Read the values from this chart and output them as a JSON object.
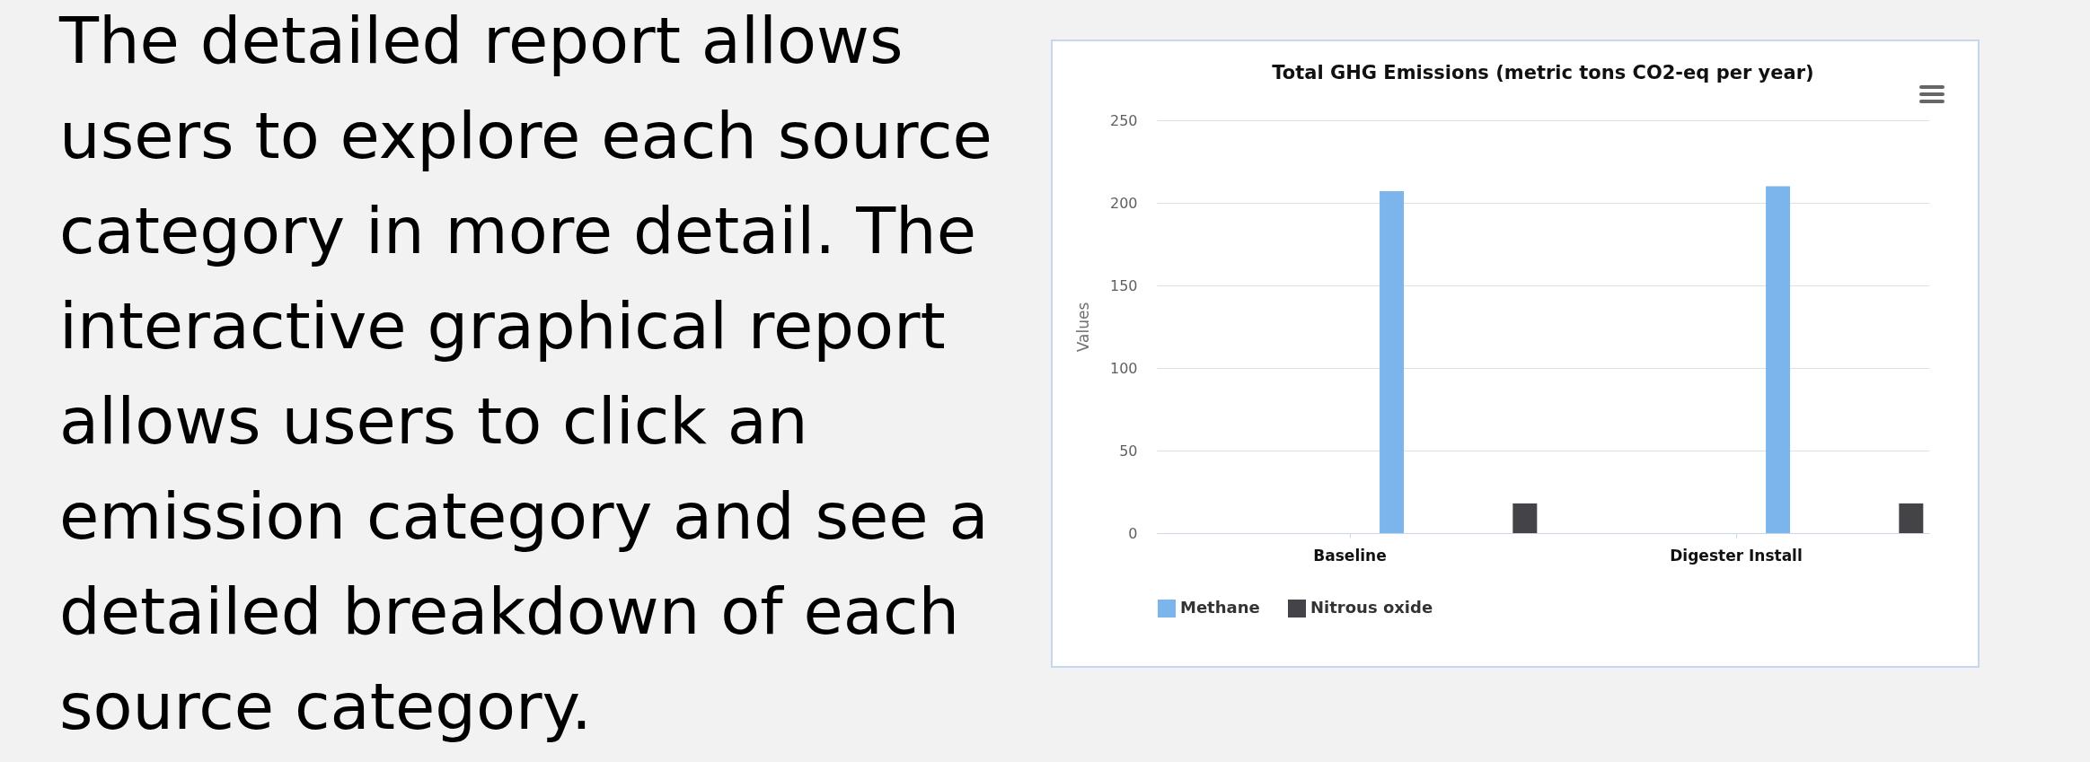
{
  "chart_data": {
    "type": "bar",
    "title": "Total GHG Emissions (metric tons CO2-eq per year)",
    "ylabel": "Values",
    "annotations": [
      "The detailed report allows users to explore each source category in more detail. The interactive graphical report allows users to click an emission category and see a detailed breakdown of each source category."
    ],
    "categories": [
      "Baseline",
      "Digester Install"
    ],
    "series": [
      {
        "name": "Methane",
        "color": "#7cb5ec",
        "values": [
          207,
          210
        ]
      },
      {
        "name": "Nitrous oxide",
        "color": "#434348",
        "values": [
          18,
          18
        ]
      }
    ],
    "ylim": [
      0,
      250
    ],
    "yticks": [
      0,
      50,
      100,
      150,
      200,
      250
    ],
    "grid": "y",
    "legend": "bottom"
  }
}
